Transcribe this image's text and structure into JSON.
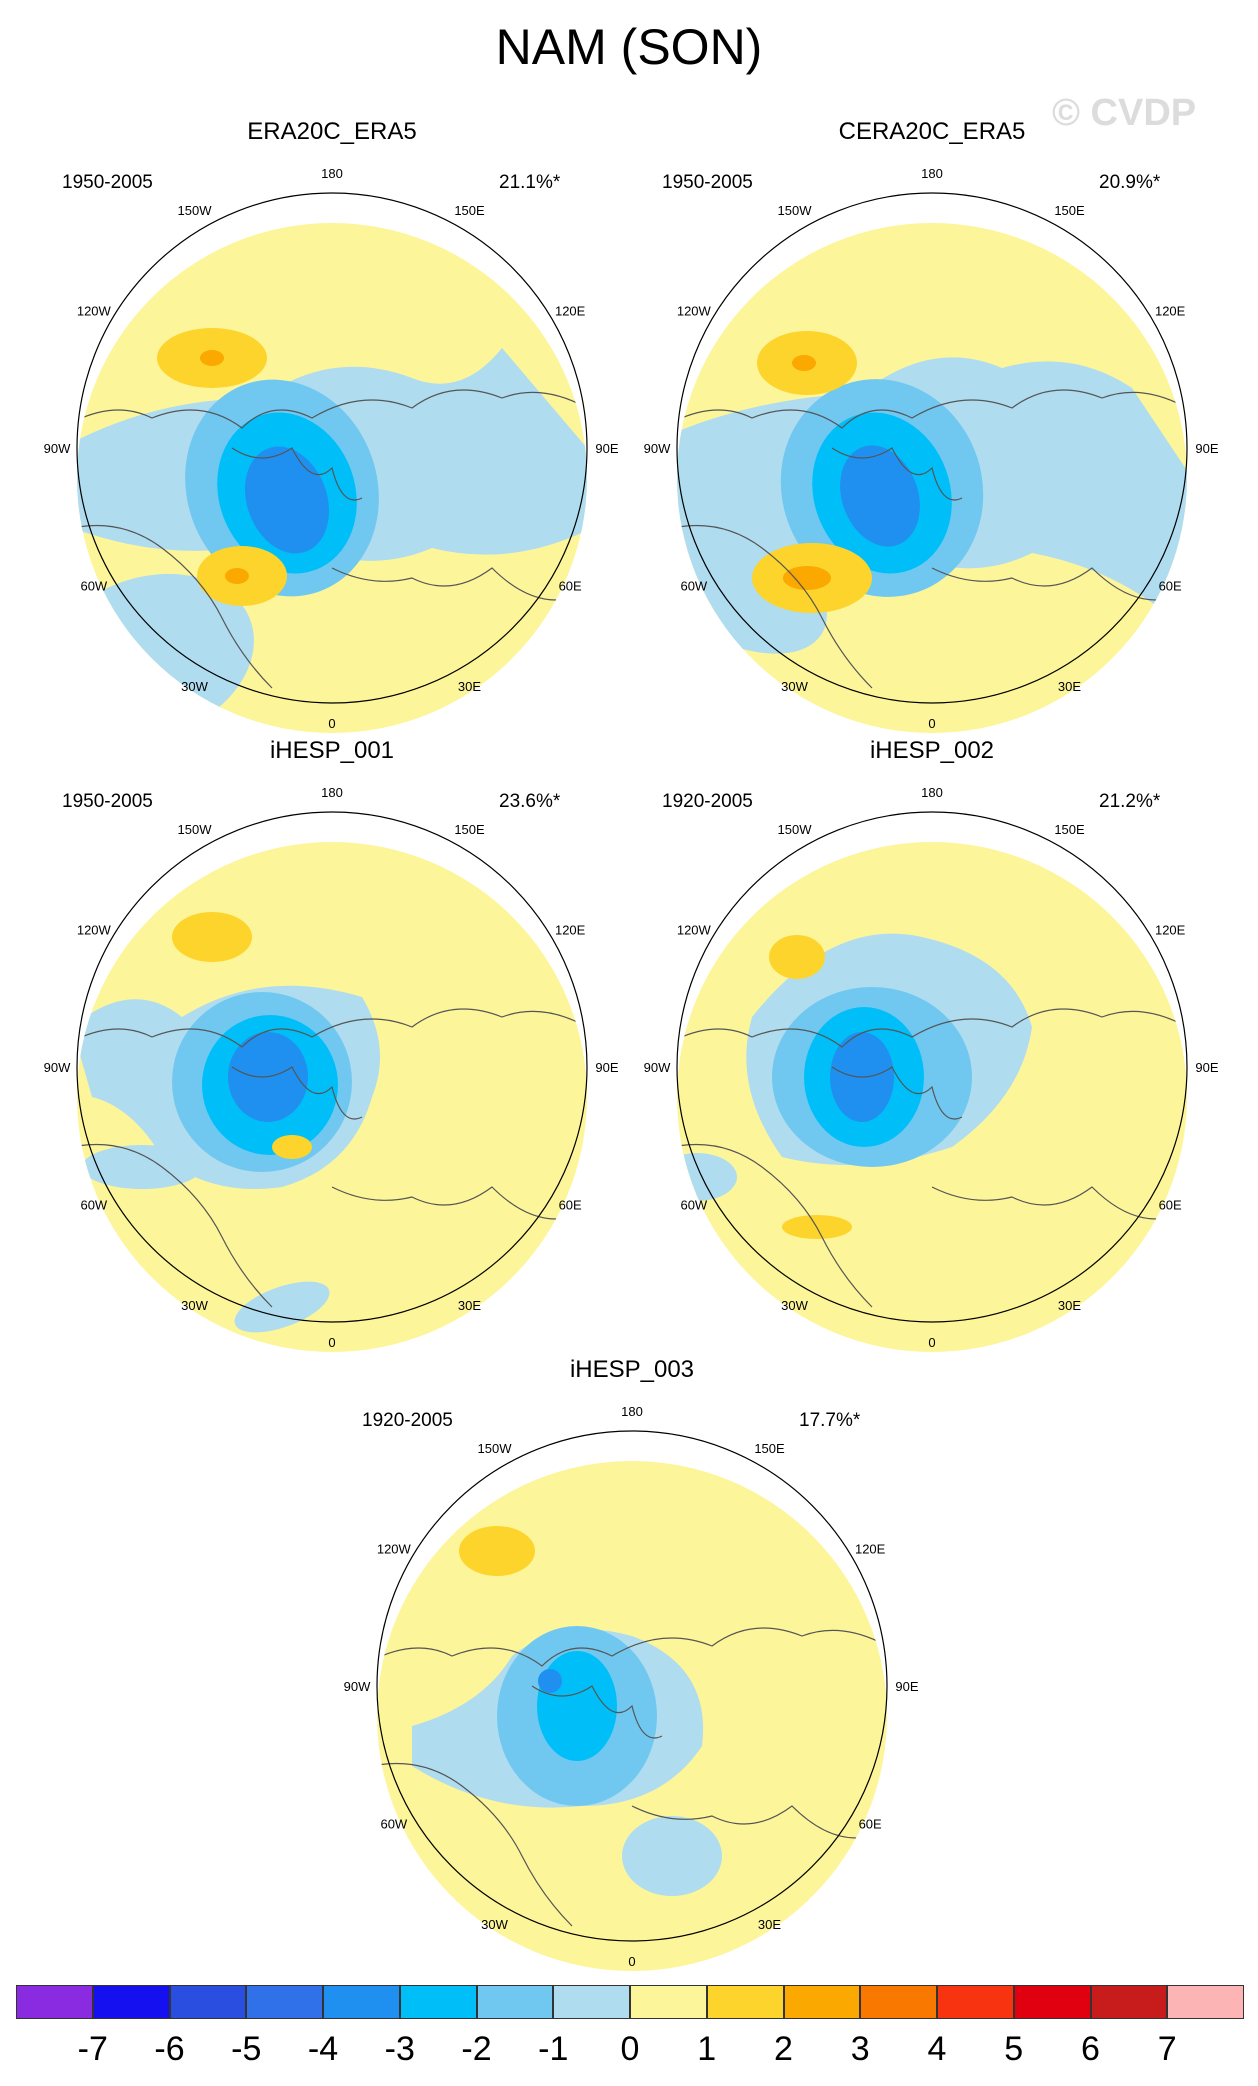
{
  "title": "NAM (SON)",
  "watermark": "© CVDP",
  "longitude_labels": [
    "180",
    "150E",
    "120E",
    "90E",
    "60E",
    "30E",
    "0",
    "30W",
    "60W",
    "90W",
    "120W",
    "150W"
  ],
  "panels": [
    {
      "name": "ERA20C_ERA5",
      "years": "1950-2005",
      "variance": "21.1%*"
    },
    {
      "name": "CERA20C_ERA5",
      "years": "1950-2005",
      "variance": "20.9%*"
    },
    {
      "name": "iHESP_001",
      "years": "1950-2005",
      "variance": "23.6%*"
    },
    {
      "name": "iHESP_002",
      "years": "1920-2005",
      "variance": "21.2%*"
    },
    {
      "name": "iHESP_003",
      "years": "1920-2005",
      "variance": "17.7%*"
    }
  ],
  "colorbar": {
    "labels": [
      "-7",
      "-6",
      "-5",
      "-4",
      "-3",
      "-2",
      "-1",
      "0",
      "1",
      "2",
      "3",
      "4",
      "5",
      "6",
      "7"
    ],
    "colors": [
      "#8a2be2",
      "#1410f0",
      "#2a4fe0",
      "#3070e8",
      "#2090f0",
      "#00bff8",
      "#70c8f0",
      "#b0dcf0",
      "#fdf59a",
      "#fdd42c",
      "#fba800",
      "#f97800",
      "#f83410",
      "#e00010",
      "#c81c1c",
      "#fdb4b4"
    ]
  },
  "palette": {
    "pos1": "#fdf59a",
    "pos2": "#fdd42c",
    "pos3": "#fba800",
    "pos4": "#f97800",
    "neg1": "#b0dcf0",
    "neg2": "#70c8f0",
    "neg3": "#00bff8",
    "neg4": "#2090f0",
    "neg5": "#3070e8"
  }
}
